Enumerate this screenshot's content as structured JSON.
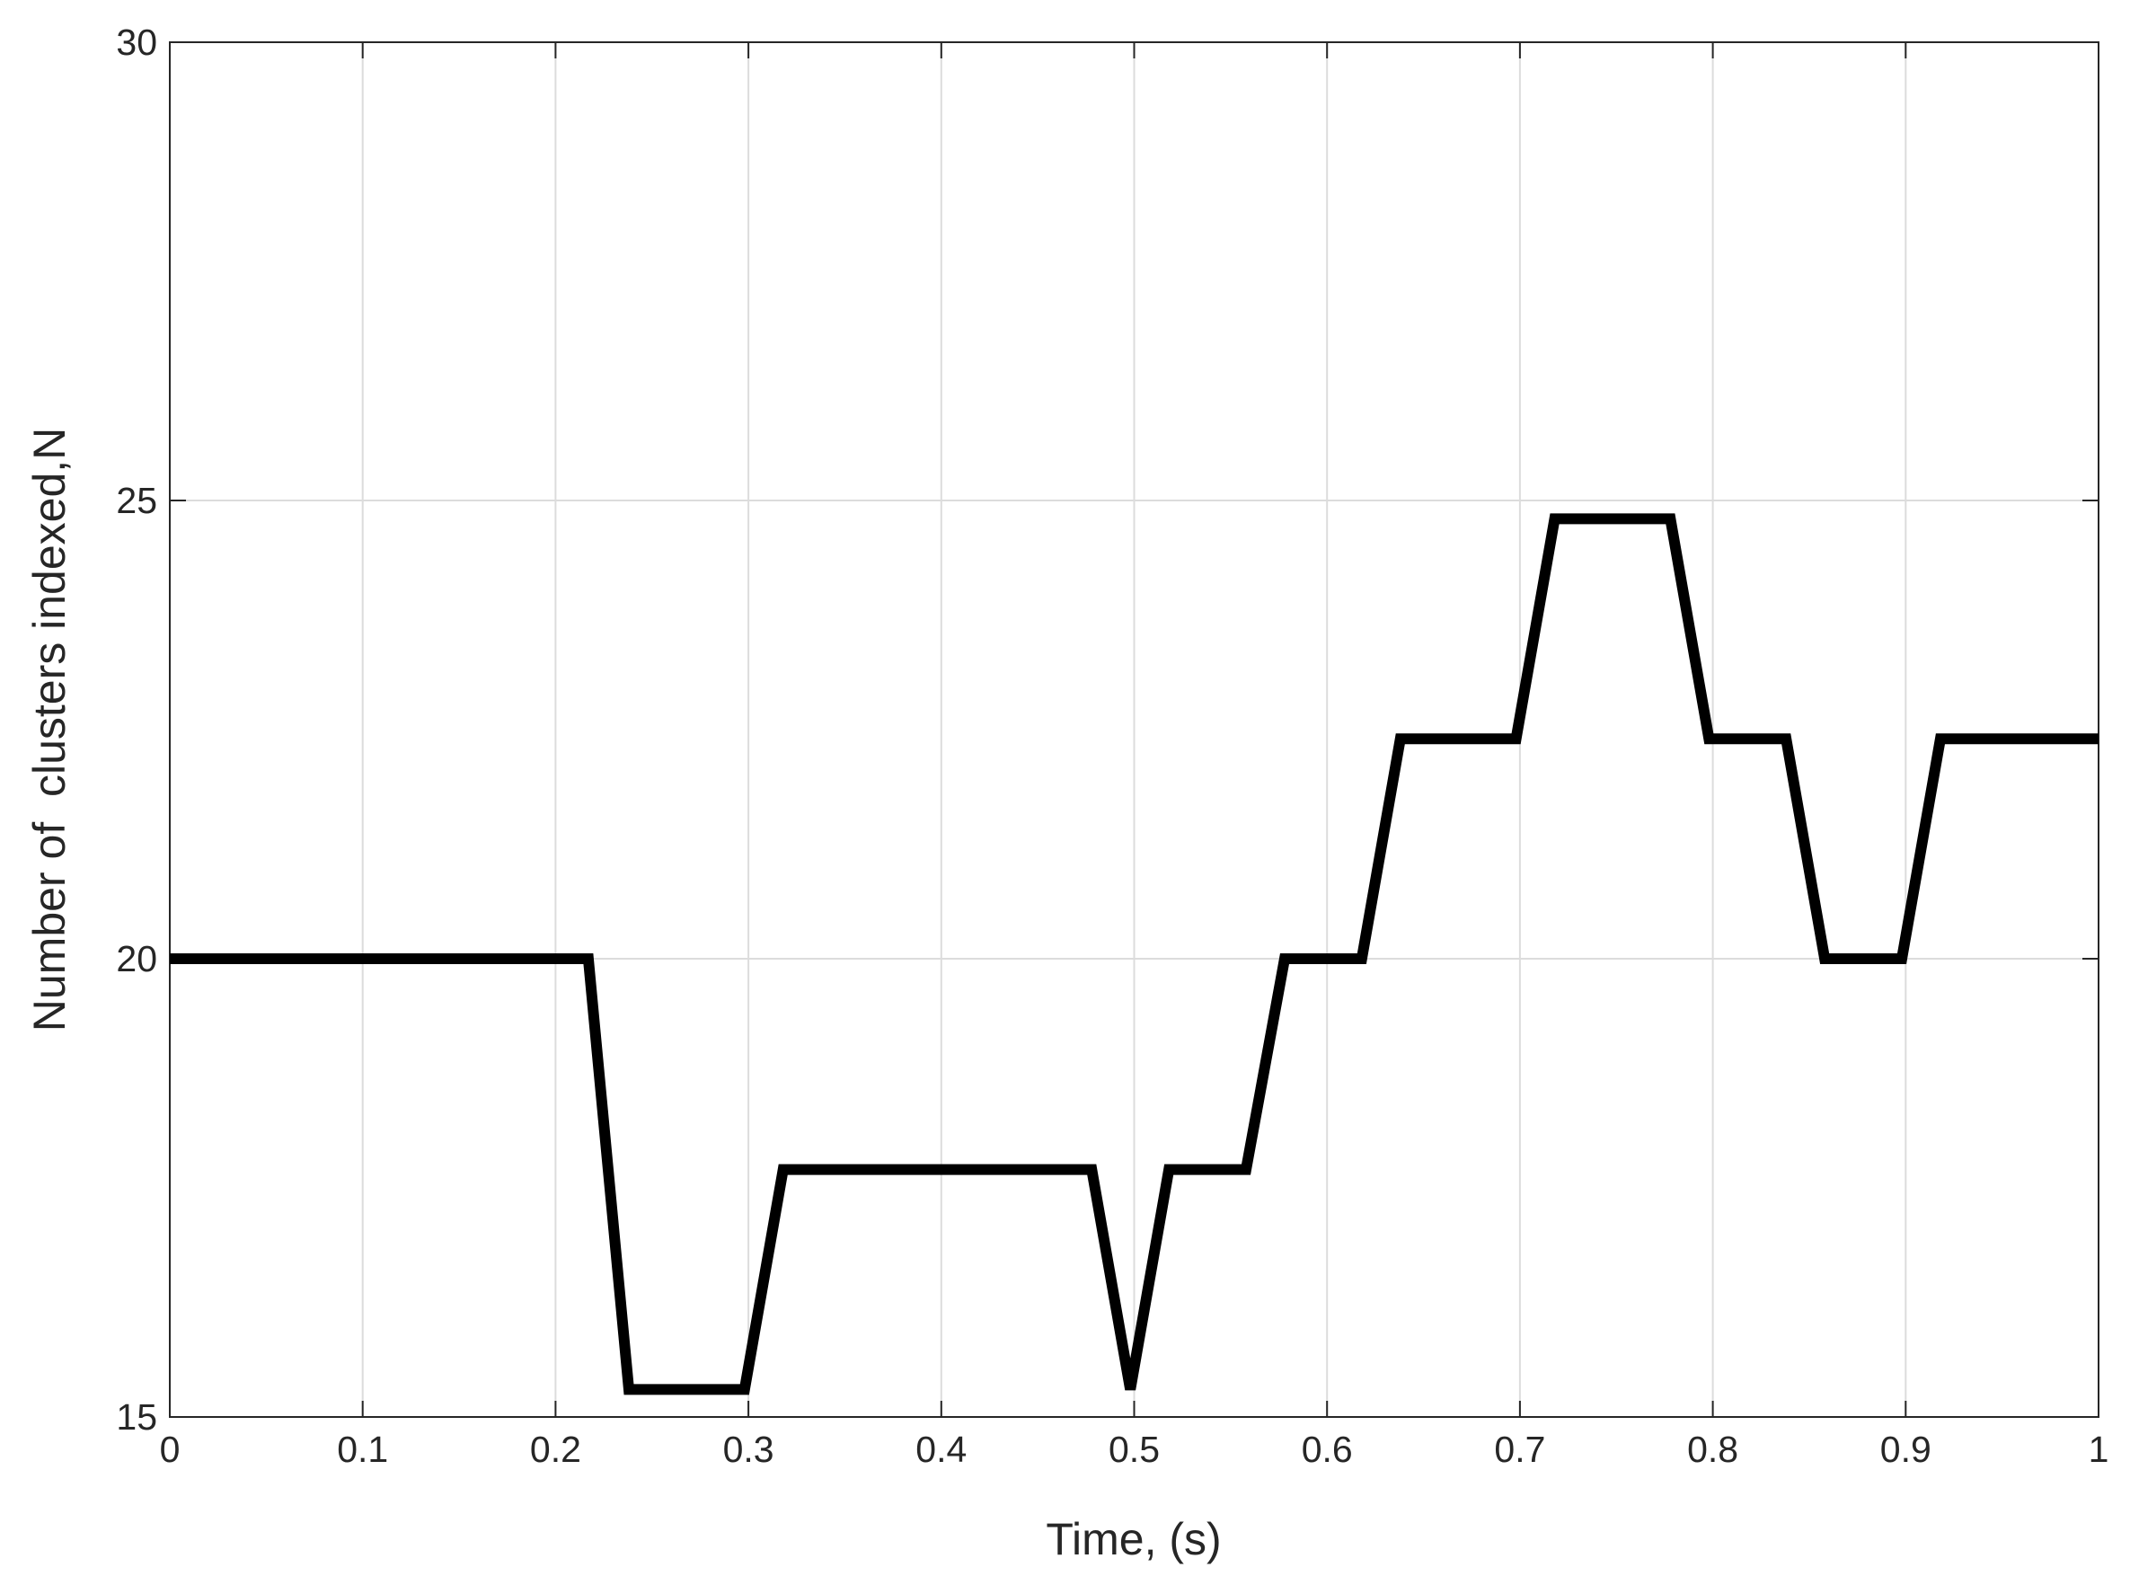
{
  "chart_data": {
    "type": "line",
    "x_label": "Time, (s)",
    "y_label": "Number of  clusters indexed,N",
    "x": [
      0,
      0.217,
      0.238,
      0.298,
      0.318,
      0.478,
      0.498,
      0.518,
      0.558,
      0.578,
      0.618,
      0.638,
      0.698,
      0.718,
      0.778,
      0.798,
      0.838,
      0.858,
      0.898,
      0.918,
      1
    ],
    "values": [
      20.0,
      20.0,
      15.3,
      15.3,
      17.7,
      17.7,
      15.3,
      17.7,
      17.7,
      20.0,
      20.0,
      22.4,
      22.4,
      24.8,
      24.8,
      22.4,
      22.4,
      20.0,
      20.0,
      22.4,
      22.4
    ],
    "color": "#000000",
    "xlim": [
      0,
      1
    ],
    "xticks": [
      0,
      0.1,
      0.2,
      0.3,
      0.4,
      0.5,
      0.6,
      0.7,
      0.8,
      0.9,
      1
    ],
    "ylim": [
      15,
      30
    ],
    "yticks": [
      15,
      20,
      25,
      30
    ],
    "grid": true
  }
}
